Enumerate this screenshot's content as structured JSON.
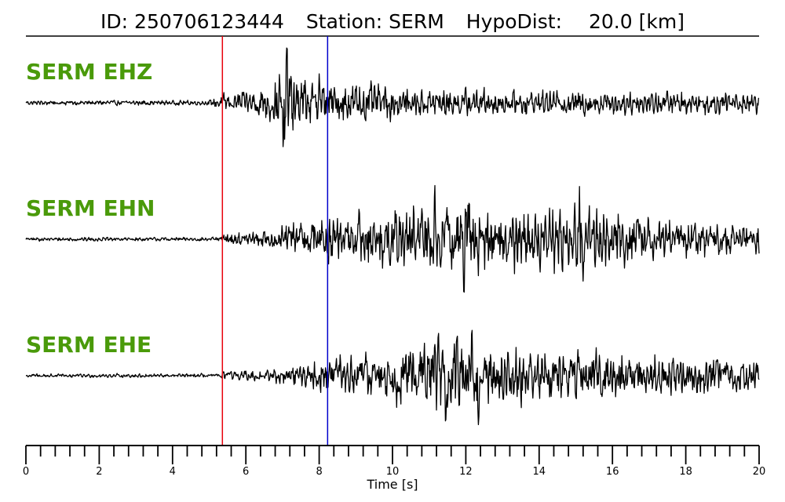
{
  "header": {
    "id_text": "ID: 250706123444",
    "station_text": "Station: SERM",
    "hypodist_label": "HypoDist:",
    "hypodist_value": "20.0 [km]"
  },
  "colors": {
    "label": "#4a9a0a",
    "trace": "#000000",
    "p_pick": "#e8000b",
    "s_pick": "#0000cc"
  },
  "chart_data": {
    "type": "line",
    "title": "ID: 250706123444   Station: SERM   HypoDist:    20.0 [km]",
    "xlabel": "Time [s]",
    "xlim": [
      0,
      20
    ],
    "x_major_ticks": [
      0,
      2,
      4,
      6,
      8,
      10,
      12,
      14,
      16,
      18,
      20
    ],
    "x_minor_tick_step": 0.4,
    "tick_labels": [
      "0",
      "2",
      "4",
      "6",
      "8",
      "10",
      "12",
      "14",
      "16",
      "18",
      "20"
    ],
    "picks": [
      {
        "phase": "P",
        "time": 5.36,
        "color": "#e8000b"
      },
      {
        "phase": "S",
        "time": 8.23,
        "color": "#0000cc"
      }
    ],
    "series": [
      {
        "name": "SERM EHZ",
        "envelope": [
          [
            0,
            0.05
          ],
          [
            5.0,
            0.05
          ],
          [
            5.36,
            0.18
          ],
          [
            6.3,
            0.3
          ],
          [
            6.9,
            0.55
          ],
          [
            7.1,
            1.0
          ],
          [
            7.4,
            0.55
          ],
          [
            7.8,
            0.4
          ],
          [
            8.6,
            0.38
          ],
          [
            9.4,
            0.42
          ],
          [
            10.5,
            0.3
          ],
          [
            12.0,
            0.28
          ],
          [
            14.0,
            0.24
          ],
          [
            17.0,
            0.25
          ],
          [
            20.0,
            0.22
          ]
        ],
        "spikes": [
          {
            "t": 7.12,
            "amp": 1.0
          },
          {
            "t": 7.02,
            "amp": -0.95
          },
          {
            "t": 8.0,
            "amp": 0.45
          }
        ]
      },
      {
        "name": "SERM EHN",
        "envelope": [
          [
            0,
            0.04
          ],
          [
            5.3,
            0.04
          ],
          [
            5.36,
            0.12
          ],
          [
            6.8,
            0.18
          ],
          [
            7.5,
            0.45
          ],
          [
            8.2,
            0.5
          ],
          [
            9.5,
            0.55
          ],
          [
            11.0,
            0.75
          ],
          [
            12.0,
            0.85
          ],
          [
            13.0,
            0.65
          ],
          [
            15.0,
            0.75
          ],
          [
            16.5,
            0.5
          ],
          [
            18.0,
            0.4
          ],
          [
            20.0,
            0.3
          ]
        ],
        "spikes": [
          {
            "t": 11.15,
            "amp": 1.0
          },
          {
            "t": 11.95,
            "amp": -0.95
          },
          {
            "t": 15.1,
            "amp": 0.82
          },
          {
            "t": 15.2,
            "amp": -0.65
          }
        ]
      },
      {
        "name": "SERM EHE",
        "envelope": [
          [
            0,
            0.04
          ],
          [
            5.3,
            0.04
          ],
          [
            5.36,
            0.1
          ],
          [
            6.5,
            0.12
          ],
          [
            7.5,
            0.25
          ],
          [
            8.5,
            0.4
          ],
          [
            10.0,
            0.5
          ],
          [
            11.0,
            0.75
          ],
          [
            12.0,
            0.85
          ],
          [
            12.8,
            0.6
          ],
          [
            15.0,
            0.5
          ],
          [
            17.0,
            0.45
          ],
          [
            20.0,
            0.35
          ]
        ],
        "spikes": [
          {
            "t": 11.45,
            "amp": -0.95
          },
          {
            "t": 11.75,
            "amp": 0.8
          },
          {
            "t": 12.35,
            "amp": -1.0
          },
          {
            "t": 11.25,
            "amp": 0.75
          }
        ]
      }
    ]
  }
}
